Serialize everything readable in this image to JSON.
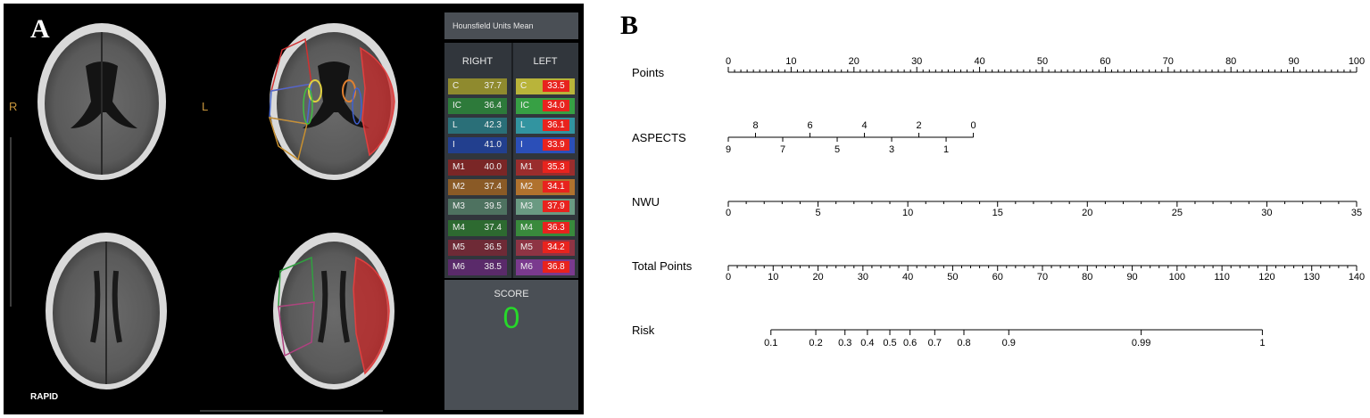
{
  "panel_a": {
    "letter": "A",
    "orientation": {
      "right": "R",
      "left": "L"
    },
    "software_label": "RAPID",
    "header": "Hounsfield Units Mean",
    "right_heading": "RIGHT",
    "left_heading": "LEFT",
    "regions": [
      {
        "label": "C",
        "right": "37.7",
        "left": "33.5",
        "color": "#8f8a2e",
        "left_color": "#b9b43a"
      },
      {
        "label": "IC",
        "right": "36.4",
        "left": "34.0",
        "color": "#2d7a3a",
        "left_color": "#37a044"
      },
      {
        "label": "L",
        "right": "42.3",
        "left": "36.1",
        "color": "#2a6f78",
        "left_color": "#3294a0"
      },
      {
        "label": "I",
        "right": "41.0",
        "left": "33.9",
        "color": "#223f8e",
        "left_color": "#2b4fb8"
      },
      {
        "label": "M1",
        "right": "40.0",
        "left": "35.3",
        "color": "#7a2626",
        "left_color": "#9a2d2d"
      },
      {
        "label": "M2",
        "right": "37.4",
        "left": "34.1",
        "color": "#8a5a26",
        "left_color": "#b0722e"
      },
      {
        "label": "M3",
        "right": "39.5",
        "left": "37.9",
        "color": "#4e7260",
        "left_color": "#6a9a82"
      },
      {
        "label": "M4",
        "right": "37.4",
        "left": "36.3",
        "color": "#2d6a30",
        "left_color": "#398a3c"
      },
      {
        "label": "M5",
        "right": "36.5",
        "left": "34.2",
        "color": "#6e2a36",
        "left_color": "#8e3444"
      },
      {
        "label": "M6",
        "right": "38.5",
        "left": "36.8",
        "color": "#5a2a6a",
        "left_color": "#7a3a8e"
      }
    ],
    "score_label": "SCORE",
    "score_value": "0"
  },
  "panel_b": {
    "letter": "B",
    "nomogram": [
      {
        "name": "Points",
        "min": 0,
        "max": 100,
        "ticks": [
          "0",
          "10",
          "20",
          "30",
          "40",
          "50",
          "60",
          "70",
          "80",
          "90",
          "100"
        ]
      },
      {
        "name": "ASPECTS",
        "top_ticks": [
          "8",
          "6",
          "4",
          "2",
          "0"
        ],
        "bottom_ticks": [
          "9",
          "7",
          "5",
          "3",
          "1"
        ]
      },
      {
        "name": "NWU",
        "min": 0,
        "max": 35,
        "ticks": [
          "0",
          "5",
          "10",
          "15",
          "20",
          "25",
          "30",
          "35"
        ]
      },
      {
        "name": "Total Points",
        "min": 0,
        "max": 140,
        "ticks": [
          "0",
          "10",
          "20",
          "30",
          "40",
          "50",
          "60",
          "70",
          "80",
          "90",
          "100",
          "110",
          "120",
          "130",
          "140"
        ]
      },
      {
        "name": "Risk",
        "ticks": [
          "0.1",
          "0.2",
          "0.3",
          "0.4",
          "0.5",
          "0.6",
          "0.7",
          "0.8",
          "0.9",
          "0.99",
          "1"
        ]
      }
    ]
  }
}
